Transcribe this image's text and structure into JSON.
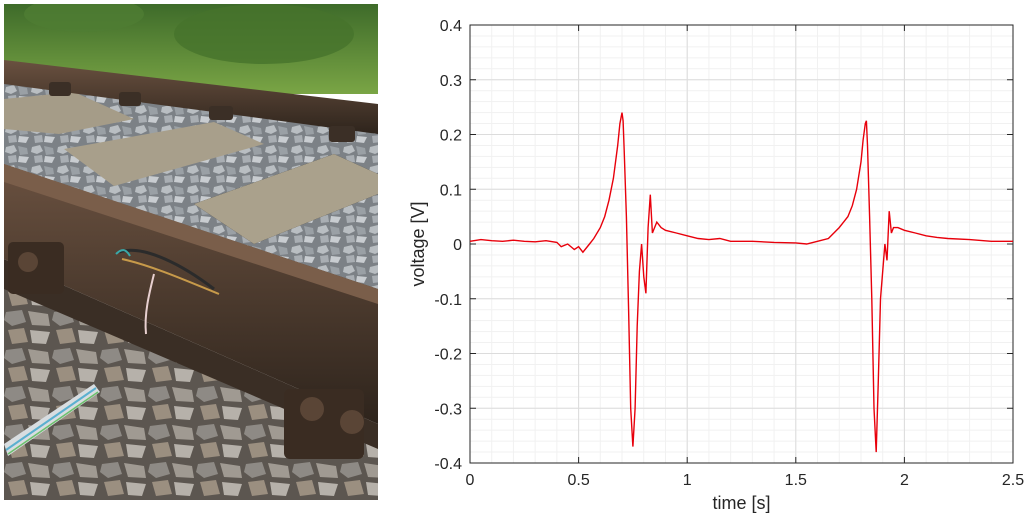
{
  "photo": {
    "alt": "",
    "colors": {
      "grass": "#5f8d3a",
      "rail": "#4a3a2e",
      "sleeper": "#a39a86",
      "ballast": "#8e949a"
    }
  },
  "chart_data": {
    "type": "line",
    "title": "",
    "xlabel": "time [s]",
    "ylabel": "voltage [V]",
    "xlim": [
      0,
      2.5
    ],
    "ylim": [
      -0.4,
      0.4
    ],
    "xticks": [
      0,
      0.5,
      1,
      1.5,
      2,
      2.5
    ],
    "xtick_labels": [
      "0",
      "0.5",
      "1",
      "1.5",
      "2",
      "2.5"
    ],
    "yticks": [
      -0.4,
      -0.3,
      -0.2,
      -0.1,
      0,
      0.1,
      0.2,
      0.3,
      0.4
    ],
    "ytick_labels": [
      "-0.4",
      "-0.3",
      "-0.2",
      "-0.1",
      "0",
      "0.1",
      "0.2",
      "0.3",
      "0.4"
    ],
    "grid": true,
    "minor_grid": true,
    "line_color": "#e8000b",
    "series": [
      {
        "x": [
          0,
          0.05,
          0.1,
          0.15,
          0.2,
          0.25,
          0.3,
          0.35,
          0.4,
          0.42,
          0.45,
          0.48,
          0.5,
          0.52,
          0.55,
          0.57,
          0.6,
          0.62,
          0.64,
          0.66,
          0.68,
          0.69,
          0.7,
          0.705,
          0.71,
          0.72,
          0.73,
          0.74,
          0.75,
          0.76,
          0.77,
          0.78,
          0.79,
          0.8,
          0.81,
          0.82,
          0.83,
          0.84,
          0.86,
          0.88,
          0.9,
          0.95,
          1.0,
          1.05,
          1.1,
          1.15,
          1.2,
          1.3,
          1.4,
          1.5,
          1.55,
          1.6,
          1.65,
          1.7,
          1.72,
          1.74,
          1.76,
          1.78,
          1.8,
          1.81,
          1.82,
          1.825,
          1.83,
          1.84,
          1.85,
          1.86,
          1.87,
          1.88,
          1.89,
          1.9,
          1.91,
          1.92,
          1.93,
          1.94,
          1.95,
          1.97,
          2.0,
          2.05,
          2.1,
          2.15,
          2.2,
          2.3,
          2.4,
          2.5
        ],
        "y": [
          0.005,
          0.008,
          0.006,
          0.005,
          0.007,
          0.005,
          0.004,
          0.006,
          0.003,
          -0.005,
          0.0,
          -0.01,
          -0.005,
          -0.015,
          0.0,
          0.01,
          0.03,
          0.05,
          0.08,
          0.12,
          0.18,
          0.22,
          0.24,
          0.225,
          0.17,
          0.05,
          -0.12,
          -0.3,
          -0.37,
          -0.3,
          -0.15,
          -0.05,
          0.0,
          -0.06,
          -0.09,
          0.03,
          0.09,
          0.02,
          0.04,
          0.03,
          0.025,
          0.02,
          0.015,
          0.01,
          0.008,
          0.01,
          0.005,
          0.005,
          0.003,
          0.002,
          0.0,
          0.005,
          0.01,
          0.03,
          0.04,
          0.05,
          0.07,
          0.1,
          0.15,
          0.19,
          0.22,
          0.225,
          0.18,
          0.05,
          -0.1,
          -0.3,
          -0.38,
          -0.25,
          -0.1,
          -0.05,
          0.0,
          -0.03,
          0.06,
          0.02,
          0.03,
          0.03,
          0.025,
          0.02,
          0.015,
          0.012,
          0.01,
          0.008,
          0.005,
          0.005
        ]
      }
    ]
  }
}
